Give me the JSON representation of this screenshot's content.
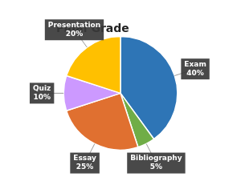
{
  "chart_data": {
    "type": "pie",
    "title": "Final Grade",
    "categories": [
      "Exam",
      "Bibliography",
      "Essay",
      "Quiz",
      "Presentation"
    ],
    "values": [
      40,
      5,
      25,
      10,
      20
    ],
    "value_labels": [
      "40%",
      "5%",
      "25%",
      "10%",
      "20%"
    ],
    "colors": [
      "#2E75B6",
      "#70AD47",
      "#E07030",
      "#CC99FF",
      "#FFC000"
    ],
    "data_labels": true
  }
}
